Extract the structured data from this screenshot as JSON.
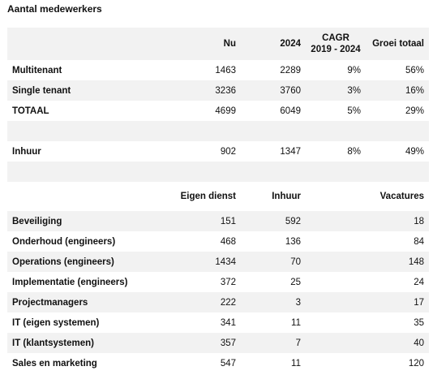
{
  "title": "Aantal medewerkers",
  "table1": {
    "headers": [
      "",
      "Nu",
      "2024",
      "CAGR 2019 - 2024",
      "Groei totaal"
    ],
    "rows": [
      {
        "label": "Multitenant",
        "nu": "1463",
        "y2024": "2289",
        "cagr": "9%",
        "groei": "56%"
      },
      {
        "label": "Single tenant",
        "nu": "3236",
        "y2024": "3760",
        "cagr": "3%",
        "groei": "16%"
      },
      {
        "label": "TOTAAL",
        "nu": "4699",
        "y2024": "6049",
        "cagr": "5%",
        "groei": "29%"
      },
      {
        "label": "",
        "nu": "",
        "y2024": "",
        "cagr": "",
        "groei": ""
      },
      {
        "label": "Inhuur",
        "nu": "902",
        "y2024": "1347",
        "cagr": "8%",
        "groei": "49%"
      },
      {
        "label": "",
        "nu": "",
        "y2024": "",
        "cagr": "",
        "groei": ""
      }
    ]
  },
  "table2": {
    "headers": [
      "",
      "Eigen dienst",
      "Inhuur",
      "",
      "Vacatures"
    ],
    "rows": [
      {
        "label": "Beveiliging",
        "eigen": "151",
        "inhuur": "592",
        "vac": "18"
      },
      {
        "label": "Onderhoud (engineers)",
        "eigen": "468",
        "inhuur": "136",
        "vac": "84"
      },
      {
        "label": "Operations (engineers)",
        "eigen": "1434",
        "inhuur": "70",
        "vac": "148"
      },
      {
        "label": "Implementatie (engineers)",
        "eigen": "372",
        "inhuur": "25",
        "vac": "24"
      },
      {
        "label": "Projectmanagers",
        "eigen": "222",
        "inhuur": "3",
        "vac": "17"
      },
      {
        "label": "IT (eigen systemen)",
        "eigen": "341",
        "inhuur": "11",
        "vac": "35"
      },
      {
        "label": "IT (klantsystemen)",
        "eigen": "357",
        "inhuur": "7",
        "vac": "40"
      },
      {
        "label": "Sales en marketing",
        "eigen": "547",
        "inhuur": "11",
        "vac": "120"
      }
    ]
  }
}
